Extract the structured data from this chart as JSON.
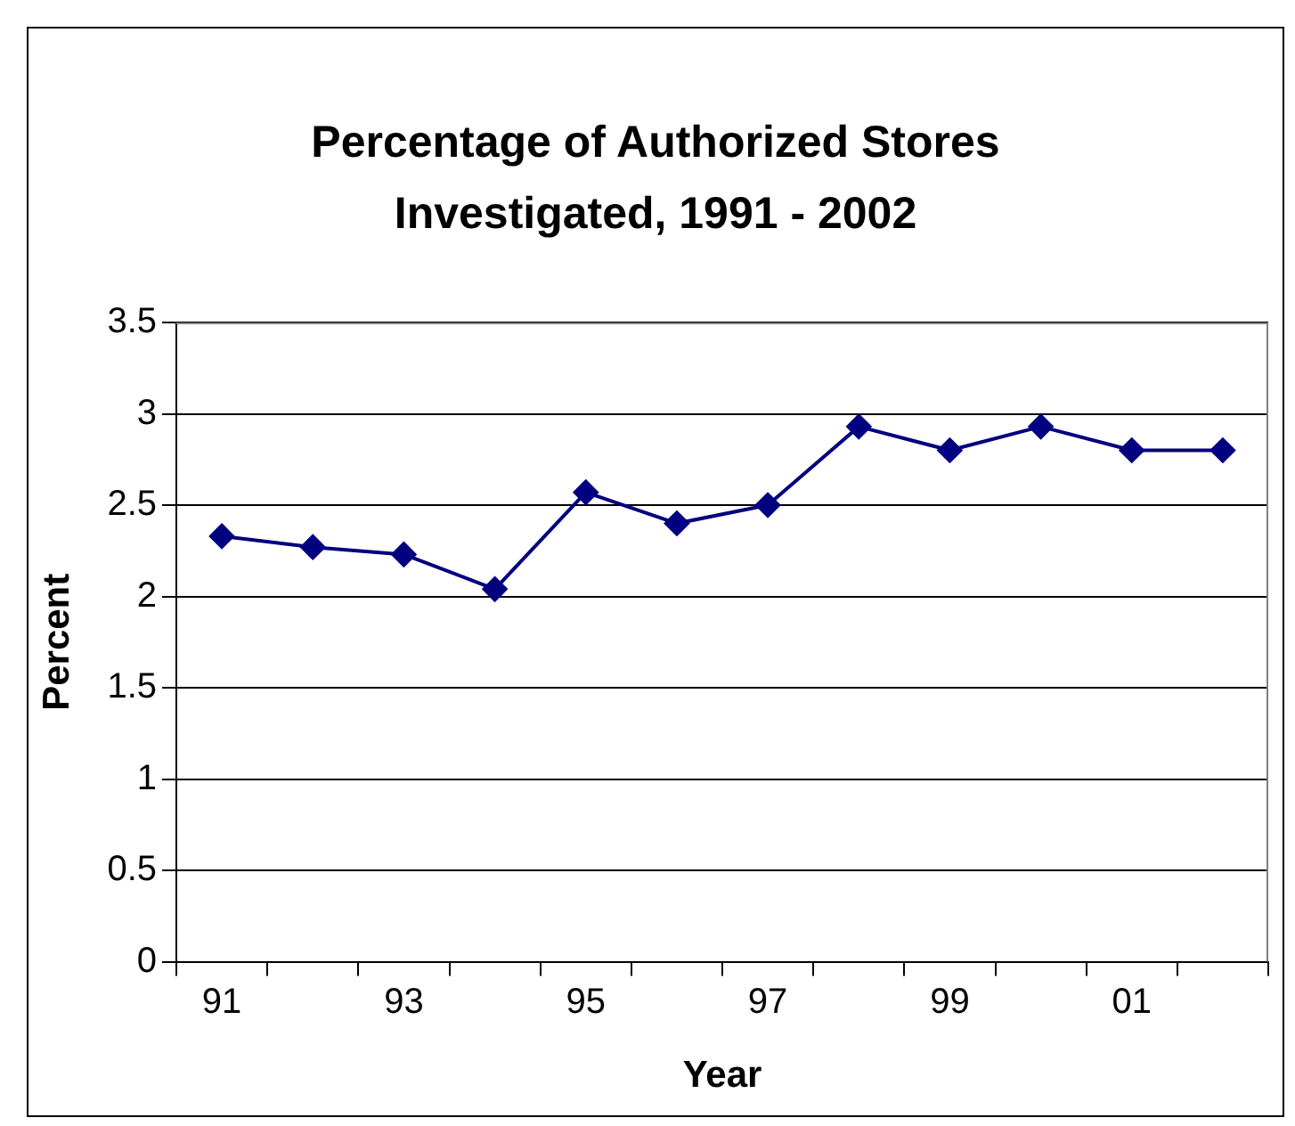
{
  "chart_data": {
    "type": "line",
    "title": "Percentage of Authorized Stores Investigated, 1991 - 2002",
    "xlabel": "Year",
    "ylabel": "Percent",
    "categories": [
      "91",
      null,
      "93",
      null,
      "95",
      null,
      "97",
      null,
      "99",
      null,
      "01",
      null
    ],
    "series": [
      {
        "color": "#000080",
        "values": [
          2.33,
          2.27,
          2.23,
          2.04,
          2.57,
          2.4,
          2.5,
          2.93,
          2.8,
          2.93,
          2.8,
          2.8
        ]
      }
    ],
    "ylim": [
      0,
      3.5
    ],
    "yticks": [
      0,
      0.5,
      1,
      1.5,
      2,
      2.5,
      3,
      3.5
    ],
    "grid": "y",
    "legend": false,
    "marker": "diamond",
    "line_style": "solid"
  }
}
